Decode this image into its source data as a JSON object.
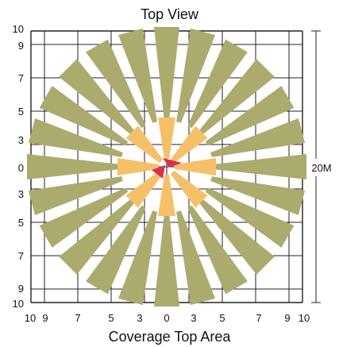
{
  "title": "Top View",
  "caption": "Coverage Top Area",
  "range_label": "20M",
  "y_tick_labels": [
    "10",
    "9",
    "7",
    "5",
    "3",
    "0",
    "3",
    "5",
    "7",
    "9",
    "10"
  ],
  "x_tick_labels": [
    "10",
    "9",
    "7",
    "5",
    "3",
    "0",
    "3",
    "5",
    "7",
    "9",
    "10"
  ],
  "far_ray_count": 24,
  "near_ray_count": 8,
  "colors": {
    "far_zone": "#abab6d",
    "near_zone": "#f6c06b",
    "sensor": "#d9304a",
    "grid": "#222222"
  }
}
